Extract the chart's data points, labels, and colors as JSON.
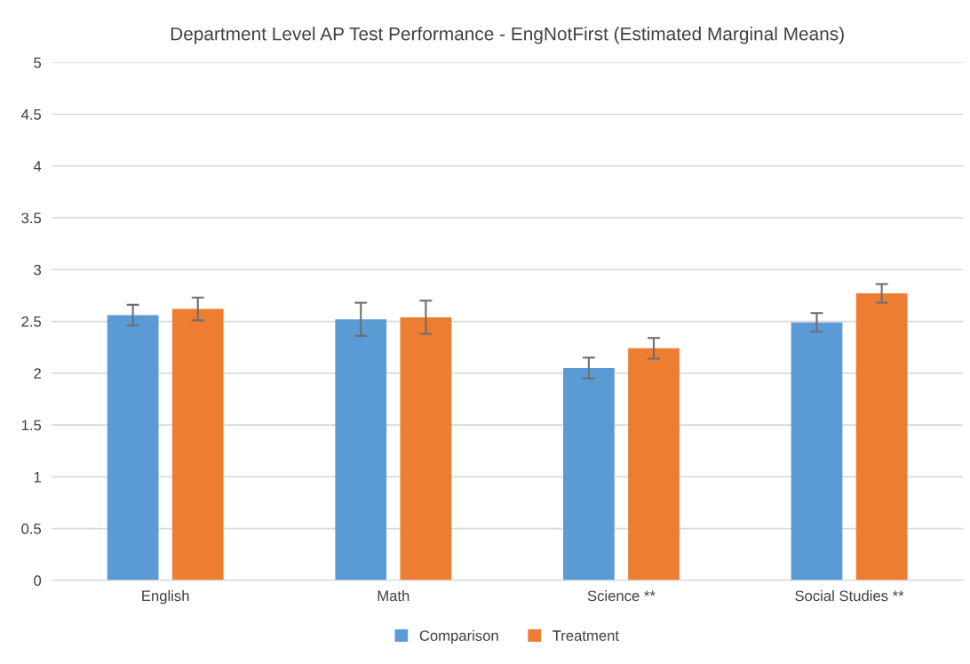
{
  "chart_data": {
    "type": "bar",
    "title": "Department Level AP Test Performance - EngNotFirst (Estimated Marginal Means)",
    "categories": [
      "English",
      "Math",
      "Science **",
      "Social Studies **"
    ],
    "series": [
      {
        "name": "Comparison",
        "color": "#5b9bd5",
        "values": [
          2.56,
          2.52,
          2.05,
          2.49
        ],
        "errors": [
          0.1,
          0.16,
          0.1,
          0.09
        ]
      },
      {
        "name": "Treatment",
        "color": "#ed7d31",
        "values": [
          2.62,
          2.54,
          2.24,
          2.77
        ],
        "errors": [
          0.11,
          0.16,
          0.1,
          0.09
        ]
      }
    ],
    "ylim": [
      0,
      5
    ],
    "yticks": [
      0,
      0.5,
      1,
      1.5,
      2,
      2.5,
      3,
      3.5,
      4,
      4.5,
      5
    ],
    "grid": "y",
    "legend": "bottom"
  }
}
